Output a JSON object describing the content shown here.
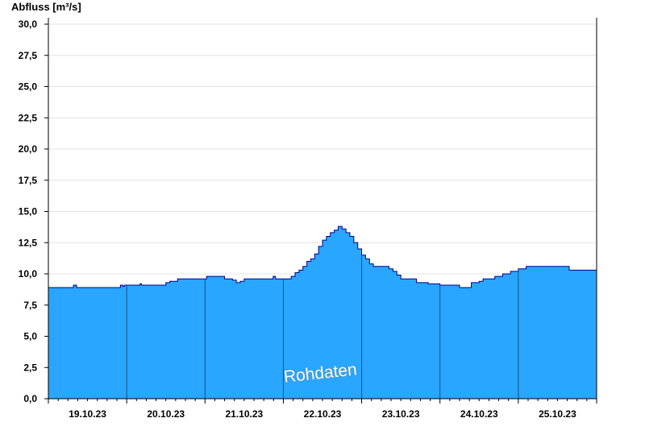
{
  "chart_data": {
    "type": "area",
    "title": "",
    "ylabel": "Abfluss [m³/s]",
    "xlabel": "",
    "ylim": [
      0,
      30
    ],
    "yticks": [
      "0,0",
      "2,5",
      "5,0",
      "7,5",
      "10,0",
      "12,5",
      "15,0",
      "17,5",
      "20,0",
      "22,5",
      "25,0",
      "27,5",
      "30,0"
    ],
    "ytick_values": [
      0,
      2.5,
      5,
      7.5,
      10,
      12.5,
      15,
      17.5,
      20,
      22.5,
      25,
      27.5,
      30
    ],
    "xlim": [
      0,
      7
    ],
    "day_labels": [
      "19.10.23",
      "20.10.23",
      "21.10.23",
      "22.10.23",
      "23.10.23",
      "24.10.23",
      "25.10.23"
    ],
    "grid": true,
    "annotation": "Rohdaten",
    "colors": {
      "fill": "#29A6FF",
      "line": "#00008B",
      "grid": "#e4e4e4",
      "day_separator": "#1a4f7a"
    },
    "series": [
      {
        "x": [
          0,
          0.3,
          0.32,
          0.34,
          0.36,
          0.9,
          0.92,
          0.95,
          0.97,
          1.0,
          1.15,
          1.17,
          1.19,
          1.45,
          1.5,
          1.55,
          1.65,
          1.7,
          2.0,
          2.02,
          2.2,
          2.25,
          2.35,
          2.4,
          2.45,
          2.5,
          2.85,
          2.87,
          2.9,
          3.05,
          3.1,
          3.15,
          3.2,
          3.25,
          3.3,
          3.35,
          3.4,
          3.45,
          3.5,
          3.55,
          3.6,
          3.65,
          3.7,
          3.75,
          3.8,
          3.85,
          3.9,
          3.95,
          4.0,
          4.05,
          4.1,
          4.15,
          4.2,
          4.25,
          4.3,
          4.35,
          4.4,
          4.45,
          4.5,
          4.7,
          4.75,
          4.8,
          4.85,
          4.9,
          5.0,
          5.1,
          5.2,
          5.25,
          5.4,
          5.5,
          5.55,
          5.6,
          5.7,
          5.8,
          5.9,
          6.0,
          6.1,
          6.15,
          6.2,
          6.3,
          6.6,
          6.65,
          6.7,
          7.0
        ],
        "y": [
          8.9,
          8.9,
          9.1,
          9.1,
          8.9,
          8.9,
          9.1,
          9.0,
          9.1,
          9.1,
          9.1,
          9.2,
          9.1,
          9.1,
          9.3,
          9.4,
          9.6,
          9.6,
          9.6,
          9.8,
          9.8,
          9.6,
          9.5,
          9.3,
          9.4,
          9.6,
          9.6,
          9.8,
          9.6,
          9.6,
          9.8,
          10.1,
          10.3,
          10.6,
          11.0,
          11.2,
          11.6,
          12.2,
          12.7,
          13.0,
          13.3,
          13.5,
          13.8,
          13.6,
          13.3,
          13.0,
          12.5,
          12.0,
          11.5,
          11.2,
          10.8,
          10.6,
          10.6,
          10.6,
          10.6,
          10.4,
          10.2,
          9.9,
          9.6,
          9.3,
          9.3,
          9.3,
          9.2,
          9.2,
          9.1,
          9.1,
          9.1,
          8.9,
          9.3,
          9.4,
          9.6,
          9.6,
          9.8,
          10.0,
          10.2,
          10.4,
          10.6,
          10.6,
          10.6,
          10.6,
          10.6,
          10.3,
          10.3,
          10.3
        ]
      }
    ]
  }
}
